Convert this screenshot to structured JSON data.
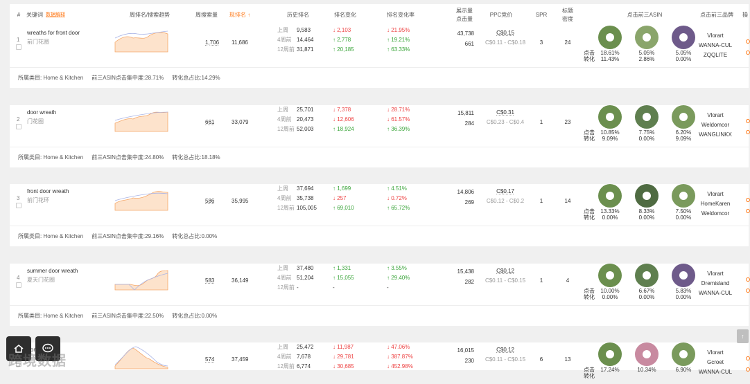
{
  "header": {
    "col_index": "#",
    "col_keyword": "关键词",
    "col_keyword_sub": "数据解释",
    "col_trend": "周排名/搜索趋势",
    "col_search_volume": "周搜索量",
    "col_rank_now": "现排名 ↑",
    "col_history": "历史排名",
    "col_rank_change": "排名变化",
    "col_rank_change_rate": "排名变化率",
    "col_display_line1": "展示量",
    "col_display_line2": "点击量",
    "col_ppc": "PPC竞价",
    "col_spr": "SPR",
    "col_title_line1": "标题",
    "col_title_line2": "密度",
    "col_top_asin": "点击前三ASIN",
    "col_top_brand": "点击前三品牌",
    "col_last": "操"
  },
  "labels": {
    "week1": "上周",
    "week4": "4周前",
    "week12": "12周前",
    "click": "点击",
    "conversion": "转化"
  },
  "rows": [
    {
      "index": "1",
      "keyword": "wreaths for front door",
      "keyword_cn": "前门花圈",
      "volume": "1,706",
      "rank_now": "11,686",
      "history": [
        "9,583",
        "14,464",
        "31,871"
      ],
      "change": [
        {
          "dir": "down",
          "v": "2,103"
        },
        {
          "dir": "up",
          "v": "2,778"
        },
        {
          "dir": "up",
          "v": "20,185"
        }
      ],
      "rate": [
        {
          "dir": "down",
          "v": "21.95%"
        },
        {
          "dir": "up",
          "v": "19.21%"
        },
        {
          "dir": "up",
          "v": "63.33%"
        }
      ],
      "display": "43,738",
      "clicks": "661",
      "ppc": "C$0.15",
      "ppc_range": "C$0.11 - C$0.18",
      "spr": "3",
      "title_density": "24",
      "asins": [
        {
          "click": "18.61%",
          "conv": "11.43%"
        },
        {
          "click": "5.05%",
          "conv": "2.86%"
        },
        {
          "click": "5.05%",
          "conv": "0.00%"
        }
      ],
      "brands": [
        "Vlorart",
        "WANNA-CUL",
        "ZQQLITE"
      ],
      "footer": {
        "category": "所属类目: Home & Kitchen",
        "concentration": "前三ASIN点击集中度:28.71%",
        "conversion_share": "转化总占比:14.29%"
      }
    },
    {
      "index": "2",
      "keyword": "door wreath",
      "keyword_cn": "门花圈",
      "volume": "661",
      "rank_now": "33,079",
      "history": [
        "25,701",
        "20,473",
        "52,003"
      ],
      "change": [
        {
          "dir": "down",
          "v": "7,378"
        },
        {
          "dir": "down",
          "v": "12,606"
        },
        {
          "dir": "up",
          "v": "18,924"
        }
      ],
      "rate": [
        {
          "dir": "down",
          "v": "28.71%"
        },
        {
          "dir": "down",
          "v": "61.57%"
        },
        {
          "dir": "up",
          "v": "36.39%"
        }
      ],
      "display": "15,811",
      "clicks": "284",
      "ppc": "C$0.31",
      "ppc_range": "C$0.23 - C$0.4",
      "spr": "1",
      "title_density": "23",
      "asins": [
        {
          "click": "10.85%",
          "conv": "9.09%"
        },
        {
          "click": "7.75%",
          "conv": "0.00%"
        },
        {
          "click": "6.20%",
          "conv": "9.09%"
        }
      ],
      "brands": [
        "Vlorart",
        "Weldomcor",
        "WANGLINKX"
      ],
      "footer": {
        "category": "所属类目: Home & Kitchen",
        "concentration": "前三ASIN点击集中度:24.80%",
        "conversion_share": "转化总占比:18.18%"
      }
    },
    {
      "index": "3",
      "keyword": "front door wreath",
      "keyword_cn": "前门花环",
      "volume": "586",
      "rank_now": "35,995",
      "history": [
        "37,694",
        "35,738",
        "105,005"
      ],
      "change": [
        {
          "dir": "up",
          "v": "1,699"
        },
        {
          "dir": "down",
          "v": "257"
        },
        {
          "dir": "up",
          "v": "69,010"
        }
      ],
      "rate": [
        {
          "dir": "up",
          "v": "4.51%"
        },
        {
          "dir": "down",
          "v": "0.72%"
        },
        {
          "dir": "up",
          "v": "65.72%"
        }
      ],
      "display": "14,806",
      "clicks": "269",
      "ppc": "C$0.17",
      "ppc_range": "C$0.12 - C$0.2",
      "spr": "1",
      "title_density": "14",
      "asins": [
        {
          "click": "13.33%",
          "conv": "0.00%"
        },
        {
          "click": "8.33%",
          "conv": "0.00%"
        },
        {
          "click": "7.50%",
          "conv": "0.00%"
        }
      ],
      "brands": [
        "Vlorart",
        "HomeKaren",
        "Weldomcor"
      ],
      "footer": {
        "category": "所属类目: Home & Kitchen",
        "concentration": "前三ASIN点击集中度:29.16%",
        "conversion_share": "转化总占比:0.00%"
      }
    },
    {
      "index": "4",
      "keyword": "summer door wreath",
      "keyword_cn": "夏天门花圈",
      "volume": "583",
      "rank_now": "36,149",
      "history": [
        "37,480",
        "51,204",
        "-"
      ],
      "change": [
        {
          "dir": "up",
          "v": "1,331"
        },
        {
          "dir": "up",
          "v": "15,055"
        },
        {
          "dir": "none",
          "v": "-"
        }
      ],
      "rate": [
        {
          "dir": "up",
          "v": "3.55%"
        },
        {
          "dir": "up",
          "v": "29.40%"
        },
        {
          "dir": "none",
          "v": "-"
        }
      ],
      "display": "15,438",
      "clicks": "282",
      "ppc": "C$0.12",
      "ppc_range": "C$0.11 - C$0.15",
      "spr": "1",
      "title_density": "4",
      "asins": [
        {
          "click": "10.00%",
          "conv": "0.00%"
        },
        {
          "click": "6.67%",
          "conv": "0.00%"
        },
        {
          "click": "5.83%",
          "conv": "0.00%"
        }
      ],
      "brands": [
        "Vlorart",
        "Dremisland",
        "WANNA-CUL"
      ],
      "footer": {
        "category": "所属类目: Home & Kitchen",
        "concentration": "前三ASIN点击集中度:22.50%",
        "conversion_share": "转化总占比:0.00%"
      }
    },
    {
      "index": "5",
      "keyword": "front door",
      "keyword_cn": "",
      "volume": "574",
      "rank_now": "37,459",
      "history": [
        "25,472",
        "7,678",
        "6,774"
      ],
      "change": [
        {
          "dir": "down",
          "v": "11,987"
        },
        {
          "dir": "down",
          "v": "29,781"
        },
        {
          "dir": "down",
          "v": "30,685"
        }
      ],
      "rate": [
        {
          "dir": "down",
          "v": "47.06%"
        },
        {
          "dir": "down",
          "v": "387.87%"
        },
        {
          "dir": "down",
          "v": "452.98%"
        }
      ],
      "display": "16,015",
      "clicks": "230",
      "ppc": "C$0.12",
      "ppc_range": "C$0.11 - C$0.15",
      "spr": "6",
      "title_density": "13",
      "asins": [
        {
          "click": "17.24%",
          "conv": ""
        },
        {
          "click": "10.34%",
          "conv": ""
        },
        {
          "click": "6.90%",
          "conv": ""
        }
      ],
      "brands": [
        "Vlorart",
        "Gcroet",
        "WANNA-CUL"
      ],
      "footer": null
    }
  ],
  "watermark": "跨境数据",
  "scroll_top": "↑",
  "colors": {
    "accent": "#ff7a1a",
    "up": "#3aa53a",
    "down": "#e44"
  }
}
